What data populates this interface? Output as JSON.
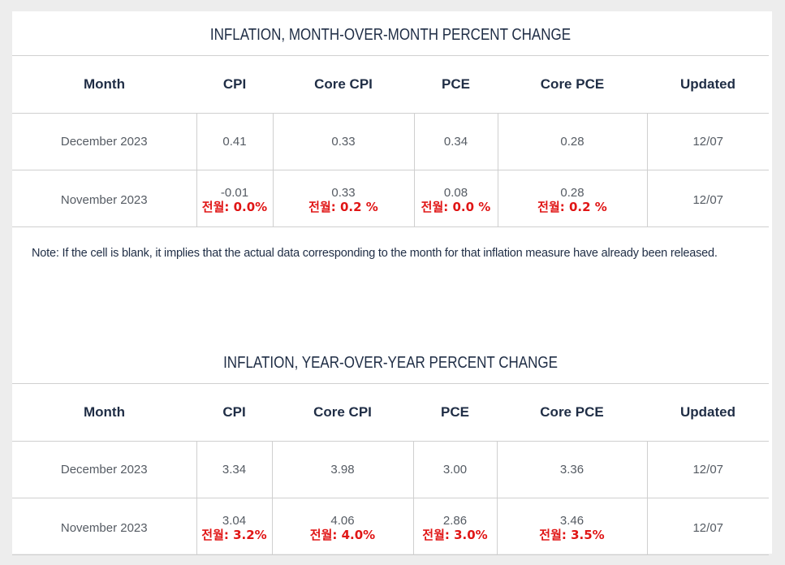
{
  "mom": {
    "title": "INFLATION, MONTH-OVER-MONTH PERCENT CHANGE",
    "headers": [
      "Month",
      "CPI",
      "Core CPI",
      "PCE",
      "Core PCE",
      "Updated"
    ],
    "rows": [
      {
        "month": "December 2023",
        "cpi": "0.41",
        "core_cpi": "0.33",
        "pce": "0.34",
        "core_pce": "0.28",
        "updated": "12/07"
      },
      {
        "month": "November 2023",
        "cpi": "-0.01",
        "core_cpi": "0.33",
        "pce": "0.08",
        "core_pce": "0.28",
        "updated": "12/07",
        "notes": {
          "cpi": "전월: 0.0%",
          "core_cpi": "전월: 0.2 %",
          "pce": "전월: 0.0 %",
          "core_pce": "전월: 0.2 %"
        }
      }
    ]
  },
  "note": "Note: If the cell is blank, it implies that the actual data corresponding to the month for that inflation measure have already been released.",
  "yoy": {
    "title": "INFLATION, YEAR-OVER-YEAR PERCENT CHANGE",
    "headers": [
      "Month",
      "CPI",
      "Core CPI",
      "PCE",
      "Core PCE",
      "Updated"
    ],
    "rows": [
      {
        "month": "December 2023",
        "cpi": "3.34",
        "core_cpi": "3.98",
        "pce": "3.00",
        "core_pce": "3.36",
        "updated": "12/07"
      },
      {
        "month": "November 2023",
        "cpi": "3.04",
        "core_cpi": "4.06",
        "pce": "2.86",
        "core_pce": "3.46",
        "updated": "12/07",
        "notes": {
          "cpi": "전월: 3.2%",
          "core_cpi": "전월: 4.0%",
          "pce": "전월: 3.0%",
          "core_pce": "전월: 3.5%"
        }
      }
    ]
  }
}
